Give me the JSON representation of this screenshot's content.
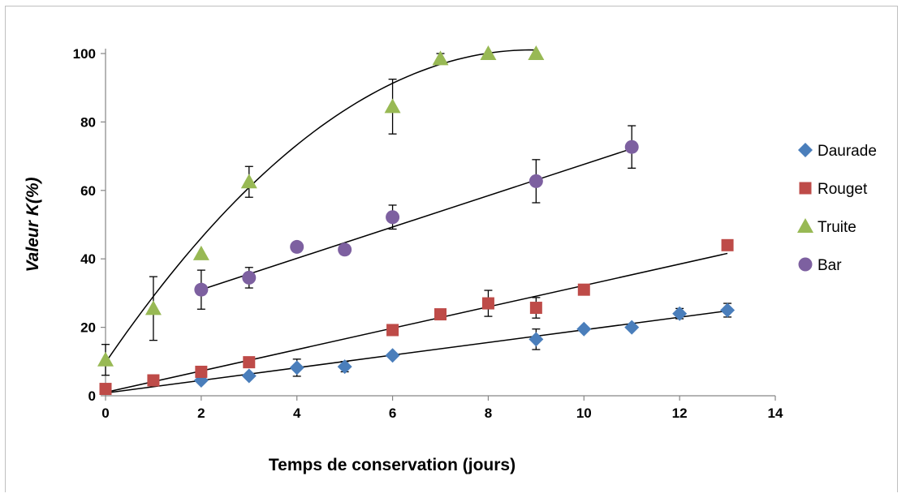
{
  "chart_data": {
    "type": "scatter",
    "xlabel": "Temps de conservation (jours)",
    "ylabel": "Valeur K(%)",
    "xlim": [
      0,
      14
    ],
    "ylim": [
      0,
      100
    ],
    "xticks": [
      0,
      2,
      4,
      6,
      8,
      10,
      12,
      14
    ],
    "yticks": [
      0,
      20,
      40,
      60,
      80,
      100
    ],
    "grid": false,
    "legend_position": "right",
    "series": [
      {
        "name": "Daurade",
        "marker": "diamond",
        "color": "#4a7ebb",
        "x": [
          2,
          3,
          4,
          5,
          6,
          9,
          10,
          11,
          12,
          13
        ],
        "y": [
          4.5,
          5.8,
          8.2,
          8.5,
          11.8,
          16.5,
          19.5,
          20,
          24,
          25
        ],
        "error": [
          0,
          0,
          2.5,
          1.5,
          0,
          3,
          0,
          0,
          1.5,
          2
        ],
        "trend": {
          "type": "linear",
          "x": [
            0,
            13
          ],
          "y": [
            0.8,
            24.8
          ]
        }
      },
      {
        "name": "Rouget",
        "marker": "square",
        "color": "#be4b48",
        "x": [
          0,
          1,
          2,
          3,
          6,
          7,
          8,
          9,
          10,
          13
        ],
        "y": [
          2,
          4.5,
          7,
          9.8,
          19.2,
          23.8,
          27,
          25.7,
          31,
          44
        ],
        "error": [
          0,
          0,
          0,
          0,
          0,
          0,
          3.8,
          3,
          0,
          0
        ],
        "trend": {
          "type": "linear",
          "x": [
            0,
            13
          ],
          "y": [
            1,
            41.6
          ]
        }
      },
      {
        "name": "Truite",
        "marker": "triangle",
        "color": "#98b954",
        "x": [
          0,
          1,
          2,
          3,
          6,
          7,
          8,
          9
        ],
        "y": [
          10.5,
          25.5,
          41.5,
          62.5,
          84.5,
          98.5,
          100,
          100
        ],
        "error": [
          4.5,
          9.3,
          0,
          4.5,
          8,
          1.5,
          0,
          0
        ],
        "trend": {
          "type": "polynomial",
          "x_range": [
            0,
            9
          ],
          "coefficients": [
            9.7,
            20.5,
            -1.15
          ]
        }
      },
      {
        "name": "Bar",
        "marker": "circle",
        "color": "#7d60a0",
        "x": [
          2,
          3,
          4,
          5,
          6,
          9,
          11
        ],
        "y": [
          31,
          34.5,
          43.5,
          42.7,
          52.2,
          62.7,
          72.7
        ],
        "error": [
          5.7,
          3,
          0,
          0,
          3.5,
          6.3,
          6.2
        ],
        "trend": {
          "type": "linear",
          "x": [
            2,
            11
          ],
          "y": [
            31,
            72.2
          ]
        }
      }
    ]
  }
}
